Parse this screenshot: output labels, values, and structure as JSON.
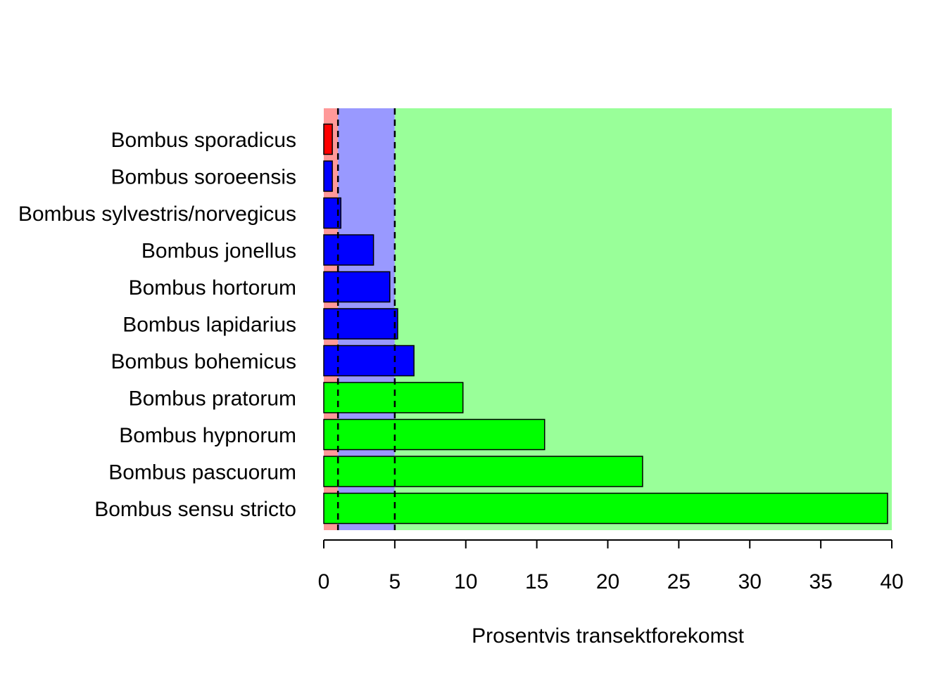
{
  "chart_data": {
    "type": "bar",
    "orientation": "horizontal",
    "xlabel": "Prosentvis transektforekomst",
    "ylabel": "",
    "title": "",
    "xlim": [
      0,
      40
    ],
    "xticks": [
      0,
      5,
      10,
      15,
      20,
      25,
      30,
      35,
      40
    ],
    "categories": [
      "Bombus sporadicus",
      "Bombus soroeensis",
      "Bombus sylvestris/norvegicus",
      "Bombus jonellus",
      "Bombus hortorum",
      "Bombus lapidarius",
      "Bombus bohemicus",
      "Bombus pratorum",
      "Bombus hypnorum",
      "Bombus pascuorum",
      "Bombus sensu stricto"
    ],
    "values": [
      0.6,
      0.6,
      1.2,
      3.5,
      4.65,
      5.2,
      6.35,
      9.8,
      15.55,
      22.45,
      39.7
    ],
    "bar_colors": [
      "#ff0000",
      "#0000ff",
      "#0000ff",
      "#0000ff",
      "#0000ff",
      "#0000ff",
      "#0000ff",
      "#00ff00",
      "#00ff00",
      "#00ff00",
      "#00ff00"
    ],
    "background_zones": [
      {
        "from": 0,
        "to": 1,
        "color": "#ff9999"
      },
      {
        "from": 1,
        "to": 5,
        "color": "#9999ff"
      },
      {
        "from": 5,
        "to": 40,
        "color": "#99ff99"
      }
    ],
    "reference_lines": [
      1,
      5
    ],
    "grid": false
  }
}
